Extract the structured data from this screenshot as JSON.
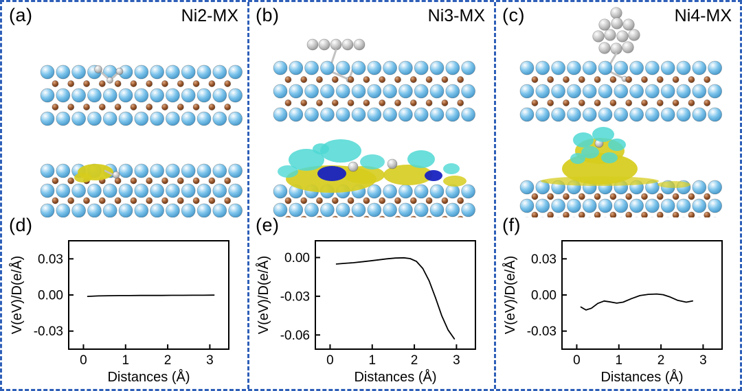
{
  "panels": {
    "a": {
      "letter": "(a)",
      "title": "Ni2-MX"
    },
    "b": {
      "letter": "(b)",
      "title": "Ni3-MX"
    },
    "c": {
      "letter": "(c)",
      "title": "Ni4-MX"
    },
    "d": {
      "letter": "(d)"
    },
    "e": {
      "letter": "(e)"
    },
    "f": {
      "letter": "(f)"
    }
  },
  "colors": {
    "border": "#2e5fb8",
    "metal_atom": "#7cc4ec",
    "carbon_atom": "#9b5a30",
    "nickel_atom": "#c9c9c9",
    "iso_yellow": "#d6cc1e",
    "iso_cyan": "#4fd8d4",
    "iso_navy": "#1822c0",
    "axis": "#000000",
    "curve": "#000000"
  },
  "chart_data": [
    {
      "id": "d",
      "type": "line",
      "title": "",
      "xlabel": "Distances (Å)",
      "ylabel": "V(eV)/D(e/Å)",
      "xlim": [
        -0.35,
        3.45
      ],
      "ylim": [
        -0.045,
        0.045
      ],
      "xticks": [
        0,
        1,
        2,
        3
      ],
      "yticks": [
        0.03,
        0,
        -0.03
      ],
      "x": [
        0.1,
        0.35,
        0.6,
        0.85,
        1.1,
        1.35,
        1.6,
        1.85,
        2.1,
        2.35,
        2.6,
        2.85,
        3.1
      ],
      "y": [
        -0.0012,
        -0.0008,
        -0.0006,
        -0.0005,
        -0.0005,
        -0.0004,
        -0.0004,
        -0.0004,
        -0.0003,
        -0.0003,
        -0.0002,
        -0.0002,
        -0.0001
      ]
    },
    {
      "id": "e",
      "type": "line",
      "title": "",
      "xlabel": "Distances (Å)",
      "ylabel": "V(eV)/D(e/Å)",
      "xlim": [
        -0.35,
        3.45
      ],
      "ylim": [
        -0.071,
        0.013
      ],
      "xticks": [
        0,
        1,
        2,
        3
      ],
      "yticks": [
        0,
        -0.03,
        -0.06
      ],
      "x": [
        0.15,
        0.35,
        0.55,
        0.75,
        0.95,
        1.15,
        1.35,
        1.55,
        1.75,
        1.9,
        2.05,
        2.2,
        2.35,
        2.5,
        2.65,
        2.8,
        2.95
      ],
      "y": [
        -0.005,
        -0.0045,
        -0.004,
        -0.0033,
        -0.0026,
        -0.0018,
        -0.001,
        -0.0004,
        -0.0002,
        -0.0008,
        -0.003,
        -0.0085,
        -0.018,
        -0.031,
        -0.045,
        -0.056,
        -0.063
      ]
    },
    {
      "id": "f",
      "type": "line",
      "title": "",
      "xlabel": "Distances (Å)",
      "ylabel": "V(eV)/D(e/Å)",
      "xlim": [
        -0.35,
        3.45
      ],
      "ylim": [
        -0.045,
        0.045
      ],
      "xticks": [
        0,
        1,
        2,
        3
      ],
      "yticks": [
        0.03,
        0,
        -0.03
      ],
      "x": [
        0.1,
        0.22,
        0.35,
        0.5,
        0.65,
        0.8,
        0.95,
        1.1,
        1.3,
        1.5,
        1.7,
        1.9,
        2.05,
        2.2,
        2.4,
        2.6,
        2.75
      ],
      "y": [
        -0.01,
        -0.0125,
        -0.011,
        -0.007,
        -0.005,
        -0.0058,
        -0.0068,
        -0.006,
        -0.003,
        -0.0005,
        0.0005,
        0.0008,
        0.0002,
        -0.0015,
        -0.0045,
        -0.006,
        -0.005
      ]
    }
  ]
}
